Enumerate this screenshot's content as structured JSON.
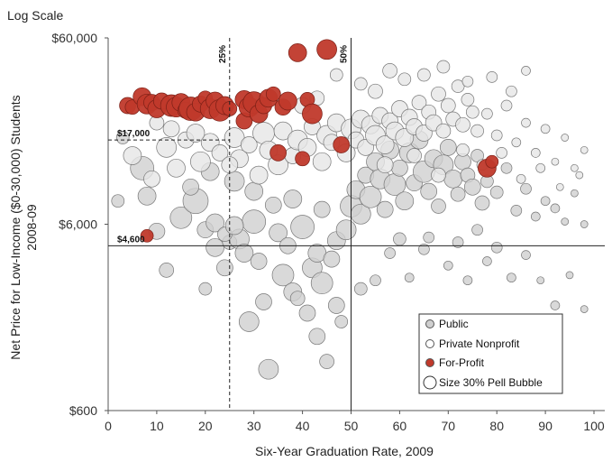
{
  "chart_data": {
    "type": "scatter",
    "scale_note": "Log Scale",
    "ylabel_line1": "Net Price for Low-Income ($0-30,000) Students",
    "ylabel_line2": "2008-09",
    "xlabel": "Six-Year Graduation Rate, 2009",
    "xlim": [
      0,
      100
    ],
    "ylim": [
      600,
      60000
    ],
    "y_scale": "log",
    "x_ticks": [
      0,
      10,
      20,
      30,
      40,
      50,
      60,
      70,
      80,
      90,
      100
    ],
    "y_ticks": [
      {
        "value": 600,
        "label": "$600"
      },
      {
        "value": 6000,
        "label": "$6,000"
      },
      {
        "value": 60000,
        "label": "$60,000"
      }
    ],
    "reference_lines": {
      "vertical": [
        {
          "x": 25,
          "label": "25%",
          "style": "dashed"
        },
        {
          "x": 50,
          "label": "50%",
          "style": "solid"
        }
      ],
      "horizontal": [
        {
          "y": 17000,
          "label": "$17,000",
          "style": "dashed"
        },
        {
          "y": 4600,
          "label": "$4,600",
          "style": "solid"
        }
      ]
    },
    "legend": {
      "placement": "bottom-right",
      "items": [
        {
          "label": "Public",
          "marker": "small-gray"
        },
        {
          "label": "Private Nonprofit",
          "marker": "small-white"
        },
        {
          "label": "For-Profit",
          "marker": "small-red"
        },
        {
          "label": "Size 30% Pell Bubble",
          "marker": "large-white"
        }
      ]
    },
    "colors": {
      "public": "#cfcfcf",
      "nonprofit": "#e6e6e6",
      "for_profit": "#c0392b",
      "stroke": "#777777"
    },
    "series": [
      {
        "name": "For-Profit",
        "points": [
          [
            4,
            26000,
            9
          ],
          [
            5,
            25500,
            8
          ],
          [
            7,
            29000,
            10
          ],
          [
            8,
            26500,
            11
          ],
          [
            9,
            27000,
            9
          ],
          [
            10,
            25000,
            10
          ],
          [
            11,
            27500,
            9
          ],
          [
            13,
            26000,
            12
          ],
          [
            14,
            25500,
            11
          ],
          [
            15,
            27000,
            10
          ],
          [
            16,
            24500,
            9
          ],
          [
            17,
            25000,
            13
          ],
          [
            18,
            24000,
            10
          ],
          [
            19,
            26500,
            9
          ],
          [
            20,
            28500,
            8
          ],
          [
            21,
            25000,
            11
          ],
          [
            22,
            27500,
            10
          ],
          [
            23,
            24500,
            12
          ],
          [
            24,
            26000,
            10
          ],
          [
            25,
            25000,
            8
          ],
          [
            28,
            28000,
            10
          ],
          [
            28,
            21500,
            9
          ],
          [
            29,
            25500,
            11
          ],
          [
            30,
            27000,
            12
          ],
          [
            31,
            23500,
            10
          ],
          [
            32,
            26000,
            9
          ],
          [
            33,
            28500,
            10
          ],
          [
            34,
            30000,
            8
          ],
          [
            36,
            25500,
            9
          ],
          [
            37,
            27500,
            10
          ],
          [
            39,
            50000,
            10
          ],
          [
            41,
            28000,
            8
          ],
          [
            42,
            23500,
            11
          ],
          [
            45,
            52000,
            11
          ],
          [
            35,
            14500,
            9
          ],
          [
            40,
            13500,
            8
          ],
          [
            48,
            16000,
            9
          ],
          [
            78,
            12000,
            10
          ],
          [
            79,
            13000,
            7
          ],
          [
            8,
            5200,
            7
          ]
        ]
      },
      {
        "name": "Public",
        "points": [
          [
            2,
            8000,
            7
          ],
          [
            3,
            17500,
            7
          ],
          [
            7,
            12000,
            13
          ],
          [
            8,
            8500,
            10
          ],
          [
            10,
            5500,
            9
          ],
          [
            12,
            3400,
            8
          ],
          [
            15,
            6500,
            12
          ],
          [
            18,
            8000,
            14
          ],
          [
            20,
            2700,
            7
          ],
          [
            22,
            4500,
            10
          ],
          [
            24,
            3500,
            9
          ],
          [
            25,
            4800,
            8
          ],
          [
            27,
            5000,
            11
          ],
          [
            28,
            4200,
            10
          ],
          [
            29,
            1800,
            11
          ],
          [
            30,
            6200,
            13
          ],
          [
            31,
            3800,
            9
          ],
          [
            32,
            2300,
            9
          ],
          [
            33,
            1000,
            11
          ],
          [
            35,
            5400,
            10
          ],
          [
            36,
            3200,
            12
          ],
          [
            37,
            4600,
            9
          ],
          [
            38,
            2600,
            10
          ],
          [
            40,
            5800,
            13
          ],
          [
            41,
            2000,
            9
          ],
          [
            42,
            3500,
            11
          ],
          [
            43,
            4200,
            10
          ],
          [
            44,
            2900,
            12
          ],
          [
            45,
            1100,
            8
          ],
          [
            46,
            3900,
            9
          ],
          [
            47,
            4900,
            10
          ],
          [
            48,
            1800,
            7
          ],
          [
            49,
            5600,
            11
          ],
          [
            50,
            7500,
            12
          ],
          [
            51,
            9200,
            10
          ],
          [
            52,
            6800,
            11
          ],
          [
            53,
            11000,
            9
          ],
          [
            54,
            8400,
            12
          ],
          [
            55,
            13000,
            10
          ],
          [
            56,
            10500,
            11
          ],
          [
            57,
            7200,
            9
          ],
          [
            58,
            15000,
            10
          ],
          [
            59,
            9800,
            12
          ],
          [
            60,
            12000,
            9
          ],
          [
            61,
            8000,
            10
          ],
          [
            62,
            14500,
            11
          ],
          [
            63,
            10000,
            9
          ],
          [
            64,
            17000,
            10
          ],
          [
            65,
            11500,
            12
          ],
          [
            66,
            9000,
            9
          ],
          [
            67,
            13500,
            10
          ],
          [
            68,
            7500,
            8
          ],
          [
            69,
            12500,
            11
          ],
          [
            70,
            15500,
            9
          ],
          [
            71,
            10500,
            10
          ],
          [
            72,
            8700,
            8
          ],
          [
            73,
            13000,
            9
          ],
          [
            74,
            11000,
            8
          ],
          [
            75,
            9500,
            9
          ],
          [
            76,
            14000,
            7
          ],
          [
            77,
            7800,
            8
          ],
          [
            78,
            10200,
            7
          ],
          [
            80,
            8900,
            7
          ],
          [
            82,
            12000,
            6
          ],
          [
            84,
            7100,
            6
          ],
          [
            86,
            9300,
            6
          ],
          [
            88,
            6600,
            5
          ],
          [
            90,
            8000,
            5
          ],
          [
            92,
            7300,
            5
          ],
          [
            94,
            6200,
            4
          ],
          [
            96,
            8800,
            4
          ],
          [
            98,
            6000,
            4
          ],
          [
            55,
            3000,
            6
          ],
          [
            58,
            4200,
            6
          ],
          [
            62,
            3100,
            5
          ],
          [
            66,
            5100,
            6
          ],
          [
            70,
            3600,
            5
          ],
          [
            74,
            3000,
            5
          ],
          [
            78,
            3800,
            5
          ],
          [
            83,
            3100,
            5
          ],
          [
            86,
            4100,
            5
          ],
          [
            89,
            3000,
            4
          ],
          [
            92,
            2200,
            5
          ],
          [
            95,
            3200,
            4
          ],
          [
            98,
            2100,
            4
          ],
          [
            20,
            5600,
            9
          ],
          [
            22,
            6100,
            10
          ],
          [
            24,
            5300,
            8
          ],
          [
            26,
            5900,
            10
          ],
          [
            43,
            1500,
            9
          ],
          [
            39,
            2400,
            8
          ],
          [
            47,
            2200,
            9
          ],
          [
            52,
            2700,
            7
          ],
          [
            60,
            5000,
            7
          ],
          [
            65,
            4400,
            6
          ],
          [
            72,
            4800,
            6
          ],
          [
            76,
            5600,
            6
          ],
          [
            80,
            4500,
            6
          ],
          [
            44,
            7200,
            9
          ],
          [
            38,
            8200,
            10
          ],
          [
            34,
            7600,
            9
          ],
          [
            30,
            9000,
            10
          ],
          [
            26,
            10200,
            11
          ],
          [
            21,
            11500,
            10
          ],
          [
            17,
            9500,
            9
          ]
        ]
      },
      {
        "name": "Private Nonprofit",
        "points": [
          [
            5,
            14000,
            10
          ],
          [
            9,
            10500,
            9
          ],
          [
            12,
            15500,
            11
          ],
          [
            14,
            12000,
            10
          ],
          [
            16,
            17000,
            9
          ],
          [
            19,
            13000,
            11
          ],
          [
            21,
            16500,
            10
          ],
          [
            23,
            14500,
            9
          ],
          [
            26,
            17500,
            11
          ],
          [
            27,
            13500,
            10
          ],
          [
            29,
            16000,
            9
          ],
          [
            32,
            18500,
            12
          ],
          [
            33,
            15000,
            10
          ],
          [
            35,
            12500,
            11
          ],
          [
            36,
            19000,
            10
          ],
          [
            38,
            14000,
            9
          ],
          [
            39,
            17000,
            11
          ],
          [
            41,
            15500,
            10
          ],
          [
            42,
            20000,
            9
          ],
          [
            44,
            13000,
            10
          ],
          [
            45,
            18000,
            11
          ],
          [
            46,
            16500,
            9
          ],
          [
            47,
            21000,
            10
          ],
          [
            49,
            14500,
            10
          ],
          [
            50,
            19500,
            11
          ],
          [
            51,
            17000,
            9
          ],
          [
            52,
            22000,
            10
          ],
          [
            53,
            15500,
            9
          ],
          [
            54,
            20500,
            10
          ],
          [
            55,
            18000,
            11
          ],
          [
            56,
            23000,
            9
          ],
          [
            57,
            16000,
            10
          ],
          [
            58,
            21500,
            9
          ],
          [
            59,
            19000,
            10
          ],
          [
            60,
            25000,
            9
          ],
          [
            61,
            17500,
            10
          ],
          [
            62,
            22500,
            9
          ],
          [
            63,
            20000,
            9
          ],
          [
            64,
            27000,
            8
          ],
          [
            65,
            18500,
            9
          ],
          [
            66,
            24000,
            8
          ],
          [
            67,
            21000,
            9
          ],
          [
            68,
            30000,
            8
          ],
          [
            69,
            19000,
            8
          ],
          [
            70,
            26000,
            8
          ],
          [
            71,
            22000,
            8
          ],
          [
            72,
            33000,
            7
          ],
          [
            73,
            20500,
            8
          ],
          [
            74,
            28000,
            7
          ],
          [
            75,
            24000,
            7
          ],
          [
            76,
            19000,
            7
          ],
          [
            78,
            23500,
            6
          ],
          [
            80,
            18000,
            6
          ],
          [
            82,
            26000,
            6
          ],
          [
            84,
            16500,
            5
          ],
          [
            86,
            21000,
            5
          ],
          [
            88,
            14500,
            5
          ],
          [
            90,
            19500,
            5
          ],
          [
            92,
            13000,
            4
          ],
          [
            94,
            17500,
            4
          ],
          [
            96,
            12000,
            4
          ],
          [
            98,
            15000,
            4
          ],
          [
            58,
            40000,
            8
          ],
          [
            61,
            36000,
            7
          ],
          [
            65,
            38000,
            7
          ],
          [
            69,
            42000,
            7
          ],
          [
            74,
            35000,
            6
          ],
          [
            79,
            37000,
            6
          ],
          [
            83,
            31000,
            6
          ],
          [
            86,
            40000,
            5
          ],
          [
            47,
            38000,
            7
          ],
          [
            52,
            34000,
            7
          ],
          [
            55,
            31000,
            8
          ],
          [
            40,
            26000,
            9
          ],
          [
            43,
            28500,
            8
          ],
          [
            31,
            11000,
            10
          ],
          [
            25,
            12500,
            9
          ],
          [
            18,
            18500,
            10
          ],
          [
            13,
            19500,
            9
          ],
          [
            10,
            21000,
            8
          ],
          [
            57,
            12500,
            9
          ],
          [
            63,
            14000,
            8
          ],
          [
            68,
            11000,
            8
          ],
          [
            73,
            15000,
            7
          ],
          [
            77,
            12500,
            6
          ],
          [
            81,
            14500,
            6
          ],
          [
            85,
            10500,
            5
          ],
          [
            89,
            12000,
            5
          ],
          [
            93,
            9500,
            4
          ],
          [
            97,
            11000,
            4
          ]
        ]
      }
    ]
  }
}
